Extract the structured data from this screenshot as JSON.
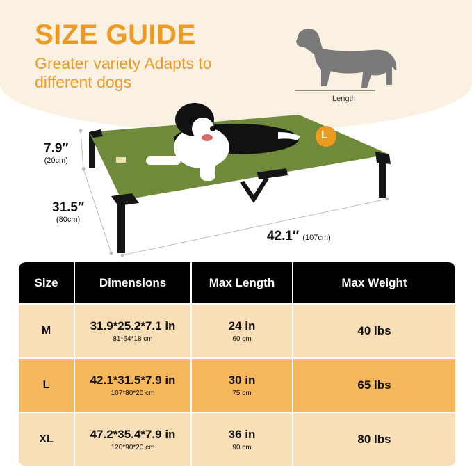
{
  "header": {
    "title": "SIZE GUIDE",
    "subtitle": "Greater variety Adapts to different dogs",
    "length_label": "Length",
    "size_badge": "L"
  },
  "dimensions": {
    "height_in": "7.9″",
    "height_cm": "(20cm)",
    "width_in": "31.5″",
    "width_cm": "(80cm)",
    "length_in": "42.1″",
    "length_cm": "(107cm)"
  },
  "colors": {
    "accent": "#ec9a22",
    "bed": "#6f8a3a",
    "header_bg": "#000000",
    "row_light": "#f8dfb7",
    "row_highlight": "#f6b75c"
  },
  "table": {
    "headers": [
      "Size",
      "Dimensions",
      "Max Length",
      "Max Weight"
    ],
    "rows": [
      {
        "size": "M",
        "dim_in": "31.9*25.2*7.1 in",
        "dim_cm": "81*64*18 cm",
        "len_in": "24 in",
        "len_cm": "60 cm",
        "weight": "40 lbs"
      },
      {
        "size": "L",
        "dim_in": "42.1*31.5*7.9 in",
        "dim_cm": "107*80*20 cm",
        "len_in": "30 in",
        "len_cm": "75 cm",
        "weight": "65 lbs"
      },
      {
        "size": "XL",
        "dim_in": "47.2*35.4*7.9 in",
        "dim_cm": "120*90*20 cm",
        "len_in": "36 in",
        "len_cm": "90 cm",
        "weight": "80 lbs"
      }
    ]
  }
}
